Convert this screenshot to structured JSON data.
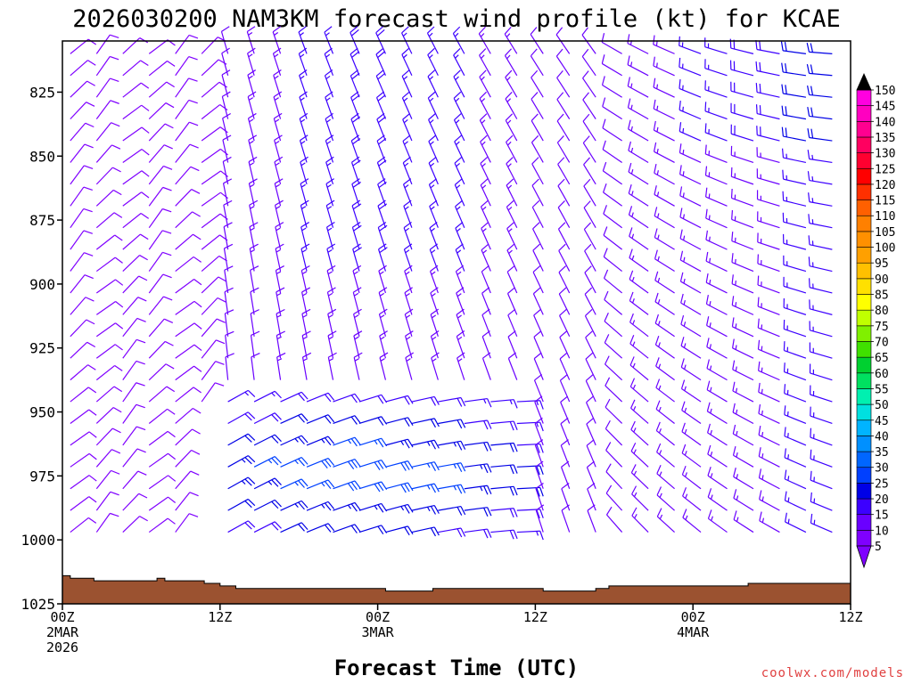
{
  "chart_data": {
    "type": "wind_profile",
    "title": "2026030200 NAM3KM forecast wind profile (kt) for KCAE",
    "xlabel": "Forecast Time (UTC)",
    "credit": "coolwx.com/models",
    "x_range_hours": [
      0,
      60
    ],
    "y_range_hPa": [
      1025,
      805
    ],
    "y_ticks": [
      {
        "value": 825,
        "label": "825"
      },
      {
        "value": 850,
        "label": "850"
      },
      {
        "value": 875,
        "label": "875"
      },
      {
        "value": 900,
        "label": "900"
      },
      {
        "value": 925,
        "label": "925"
      },
      {
        "value": 950,
        "label": "950"
      },
      {
        "value": 975,
        "label": "975"
      },
      {
        "value": 1000,
        "label": "1000"
      },
      {
        "value": 1025,
        "label": "1025"
      }
    ],
    "x_ticks": [
      {
        "hour": 0,
        "lines": [
          "00Z",
          "2MAR",
          "2026"
        ]
      },
      {
        "hour": 12,
        "lines": [
          "12Z"
        ]
      },
      {
        "hour": 24,
        "lines": [
          "00Z",
          "3MAR"
        ]
      },
      {
        "hour": 36,
        "lines": [
          "12Z"
        ]
      },
      {
        "hour": 48,
        "lines": [
          "00Z",
          "4MAR"
        ]
      },
      {
        "hour": 60,
        "lines": [
          "12Z"
        ]
      }
    ],
    "colorbar": {
      "units": "kt",
      "levels": [
        5,
        10,
        15,
        20,
        25,
        30,
        35,
        40,
        45,
        50,
        55,
        60,
        65,
        70,
        75,
        80,
        85,
        90,
        95,
        100,
        105,
        110,
        115,
        120,
        125,
        130,
        135,
        140,
        145,
        150
      ],
      "labels": [
        "5",
        "10",
        "15",
        "20",
        "25",
        "30",
        "35",
        "40",
        "45",
        "50",
        "55",
        "60",
        "65",
        "70",
        "75",
        "80",
        "85",
        "90",
        "95",
        "100",
        "105",
        "110",
        "115",
        "120",
        "125",
        "130",
        "135",
        "140",
        "145",
        "150"
      ],
      "colors": [
        "#7f00ff",
        "#6a00ff",
        "#3c00ff",
        "#0000e6",
        "#0040ff",
        "#0066ff",
        "#0090ff",
        "#00b4ff",
        "#00e0e0",
        "#00f0b0",
        "#00e060",
        "#00d030",
        "#40e000",
        "#80f000",
        "#c0ff00",
        "#ffff00",
        "#ffe000",
        "#ffc000",
        "#ffa000",
        "#ff9000",
        "#ff8000",
        "#ff6000",
        "#ff3000",
        "#ff0000",
        "#ff0030",
        "#ff0060",
        "#ff0090",
        "#ff00c0",
        "#ff00e0",
        "#ff40ff"
      ]
    },
    "terrain": {
      "color": "#9b5230",
      "surface_pressure_by_hour": [
        {
          "hour": 0,
          "p": 1014
        },
        {
          "hour": 0.6,
          "p": 1015
        },
        {
          "hour": 2.4,
          "p": 1016
        },
        {
          "hour": 7.2,
          "p": 1015
        },
        {
          "hour": 7.8,
          "p": 1016
        },
        {
          "hour": 10.8,
          "p": 1017
        },
        {
          "hour": 12.0,
          "p": 1018
        },
        {
          "hour": 13.2,
          "p": 1019
        },
        {
          "hour": 19.2,
          "p": 1019
        },
        {
          "hour": 23.4,
          "p": 1019
        },
        {
          "hour": 24.6,
          "p": 1020
        },
        {
          "hour": 28.2,
          "p": 1019
        },
        {
          "hour": 36.6,
          "p": 1020
        },
        {
          "hour": 40.6,
          "p": 1019
        },
        {
          "hour": 41.6,
          "p": 1018
        },
        {
          "hour": 52.2,
          "p": 1017
        },
        {
          "hour": 60,
          "p": 1017
        }
      ]
    },
    "wind_field": {
      "time_step_hours": 1,
      "times_hours": [
        0,
        60
      ],
      "levels_hPa": [
        810,
        1005,
        8.5
      ],
      "notes": "Barbs mostly 5-20 kt (purple), 20-35 kt (blue) near 950-990 hPa between 12Z 2MAR and 11Z 3MAR; northerly/northwesterly flow aloft turning westerly late period."
    }
  }
}
